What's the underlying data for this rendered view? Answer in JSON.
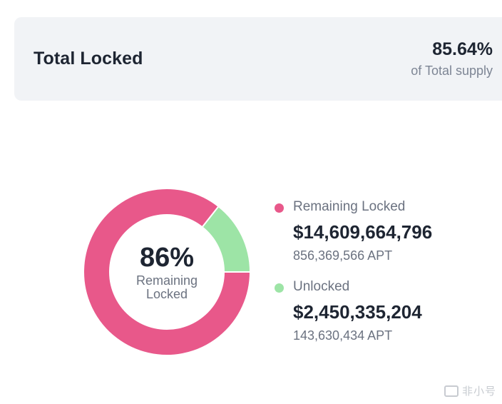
{
  "summary": {
    "title": "Total Locked",
    "percent": "85.64%",
    "subtitle": "of Total supply"
  },
  "donut": {
    "center_percent": "86%",
    "center_label": "Remaining Locked"
  },
  "legend": [
    {
      "name": "Remaining Locked",
      "usd": "$14,609,664,796",
      "apt": "856,369,566 APT",
      "color": "#e8588a"
    },
    {
      "name": "Unlocked",
      "usd": "$2,450,335,204",
      "apt": "143,630,434 APT",
      "color": "#9de4a6"
    }
  ],
  "watermark": {
    "text": "非小号"
  },
  "chart_data": {
    "type": "pie",
    "categories": [
      "Remaining Locked",
      "Unlocked"
    ],
    "values": [
      85.64,
      14.36
    ],
    "colors": [
      "#e8588a",
      "#9de4a6"
    ]
  }
}
